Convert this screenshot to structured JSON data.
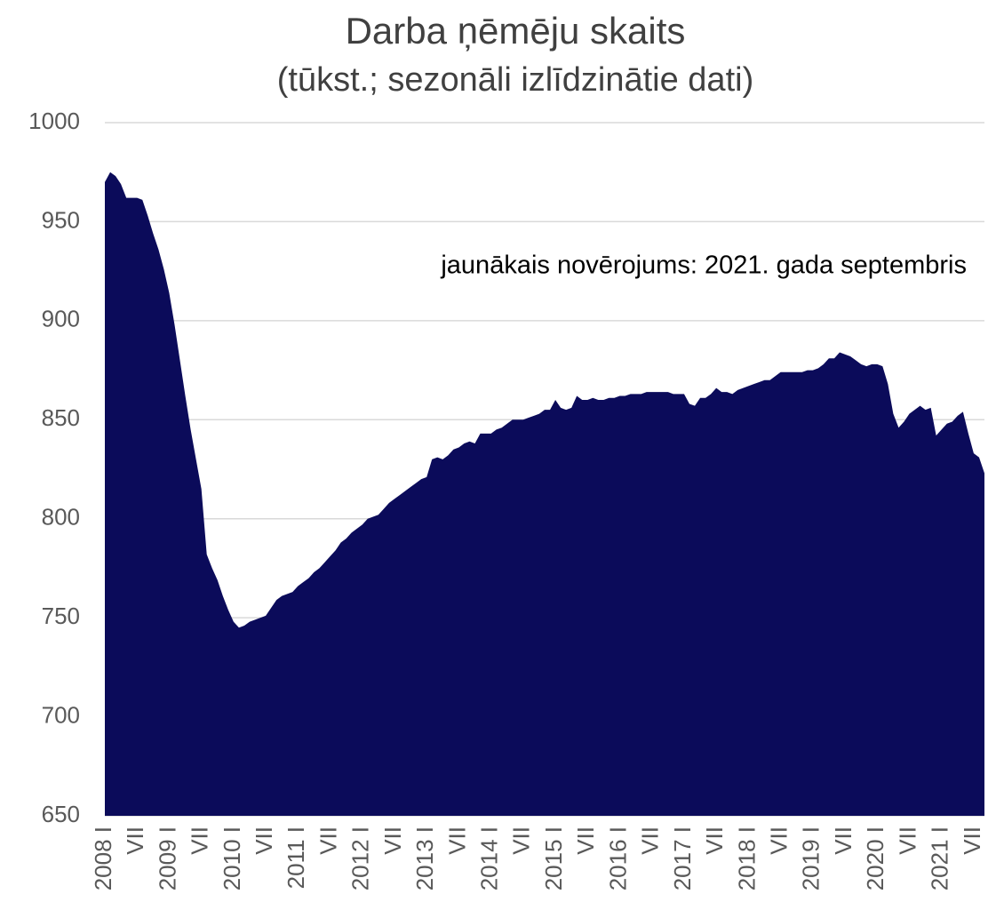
{
  "chart_data": {
    "type": "area",
    "title": "Darba ņēmēju skaits",
    "subtitle": "(tūkst.; sezonāli izlīdzinātie dati)",
    "annotation": "jaunākais novērojums: 2021. gada septembris",
    "color": "#0b0b5a",
    "grid": true,
    "ylim": [
      650,
      1000
    ],
    "yticks": [
      650,
      700,
      750,
      800,
      850,
      900,
      950,
      1000
    ],
    "categories": [
      "2008 I",
      null,
      null,
      null,
      null,
      null,
      "VII",
      null,
      null,
      null,
      null,
      null,
      "2009 I",
      null,
      null,
      null,
      null,
      null,
      "VII",
      null,
      null,
      null,
      null,
      null,
      "2010 I",
      null,
      null,
      null,
      null,
      null,
      "VII",
      null,
      null,
      null,
      null,
      null,
      "2011 I",
      null,
      null,
      null,
      null,
      null,
      "VII",
      null,
      null,
      null,
      null,
      null,
      "2012 I",
      null,
      null,
      null,
      null,
      null,
      "VII",
      null,
      null,
      null,
      null,
      null,
      "2013 I",
      null,
      null,
      null,
      null,
      null,
      "VII",
      null,
      null,
      null,
      null,
      null,
      "2014 I",
      null,
      null,
      null,
      null,
      null,
      "VII",
      null,
      null,
      null,
      null,
      null,
      "2015 I",
      null,
      null,
      null,
      null,
      null,
      "VII",
      null,
      null,
      null,
      null,
      null,
      "2016 I",
      null,
      null,
      null,
      null,
      null,
      "VII",
      null,
      null,
      null,
      null,
      null,
      "2017 I",
      null,
      null,
      null,
      null,
      null,
      "VII",
      null,
      null,
      null,
      null,
      null,
      "2018 I",
      null,
      null,
      null,
      null,
      null,
      "VII",
      null,
      null,
      null,
      null,
      null,
      "2019 I",
      null,
      null,
      null,
      null,
      null,
      "VII",
      null,
      null,
      null,
      null,
      null,
      "2020 I",
      null,
      null,
      null,
      null,
      null,
      "VII",
      null,
      null,
      null,
      null,
      null,
      "2021 I",
      null,
      null,
      null,
      null,
      null,
      "VII",
      null,
      null
    ],
    "values": [
      970,
      975,
      973,
      969,
      962,
      962,
      962,
      961,
      953,
      944,
      936,
      926,
      914,
      898,
      880,
      862,
      845,
      830,
      815,
      782,
      775,
      769,
      761,
      754,
      748,
      745,
      746,
      748,
      749,
      750,
      751,
      755,
      759,
      761,
      762,
      763,
      766,
      768,
      770,
      773,
      775,
      778,
      781,
      784,
      788,
      790,
      793,
      795,
      797,
      800,
      801,
      802,
      805,
      808,
      810,
      812,
      814,
      816,
      818,
      820,
      821,
      830,
      831,
      830,
      832,
      835,
      836,
      838,
      839,
      838,
      843,
      843,
      843,
      845,
      846,
      848,
      850,
      850,
      850,
      851,
      852,
      853,
      855,
      855,
      860,
      856,
      855,
      856,
      862,
      860,
      860,
      861,
      860,
      860,
      861,
      861,
      862,
      862,
      863,
      863,
      863,
      864,
      864,
      864,
      864,
      864,
      863,
      863,
      863,
      858,
      857,
      861,
      861,
      863,
      866,
      864,
      864,
      863,
      865,
      866,
      867,
      868,
      869,
      870,
      870,
      872,
      874,
      874,
      874,
      874,
      874,
      875,
      875,
      876,
      878,
      881,
      881,
      884,
      883,
      882,
      880,
      878,
      877,
      878,
      878,
      877,
      868,
      853,
      846,
      849,
      853,
      855,
      857,
      855,
      856,
      842,
      845,
      848,
      849,
      852,
      854,
      843,
      833,
      831,
      823
    ]
  }
}
